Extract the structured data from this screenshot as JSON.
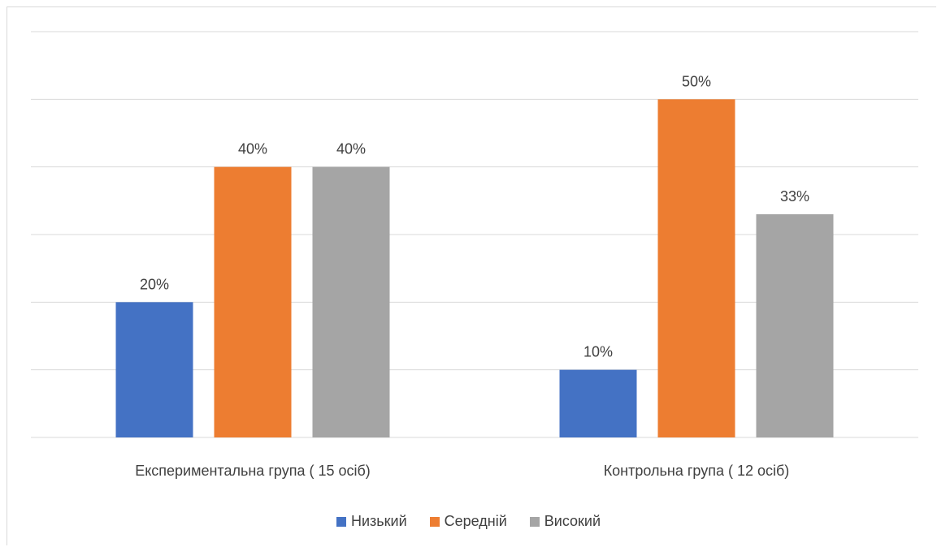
{
  "chart_data": {
    "type": "bar",
    "categories": [
      "Експериментальна група ( 15 осіб)",
      "Контрольна група ( 12 осіб)"
    ],
    "series": [
      {
        "name": "Низький",
        "color": "#4472c4",
        "values": [
          20,
          10
        ],
        "labels": [
          "20%",
          "10%"
        ]
      },
      {
        "name": "Середній",
        "color": "#ed7d31",
        "values": [
          40,
          50
        ],
        "labels": [
          "40%",
          "50%"
        ]
      },
      {
        "name": "Високий",
        "color": "#a5a5a5",
        "values": [
          40,
          33
        ],
        "labels": [
          "40%",
          "33%"
        ]
      }
    ],
    "ylim": [
      0,
      60
    ],
    "y_gridlines": [
      0,
      10,
      20,
      30,
      40,
      50,
      60
    ],
    "grid": true,
    "legend": "bottom"
  }
}
